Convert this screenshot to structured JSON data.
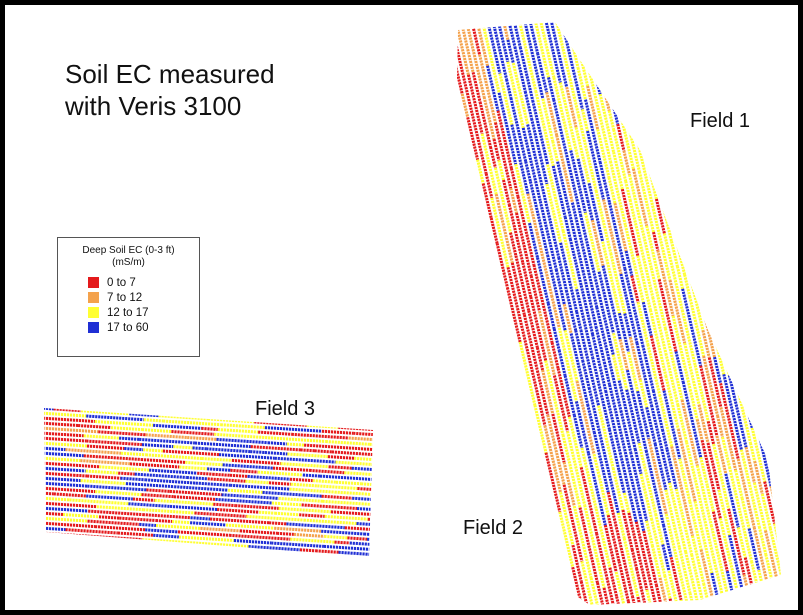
{
  "title": {
    "line1": "Soil EC measured",
    "line2": "with Veris 3100"
  },
  "legend": {
    "title_line1": "Deep Soil EC (0-3 ft)",
    "title_line2": "(mS/m)",
    "classes": [
      {
        "label": "0  to  7",
        "color": "#e41a1c"
      },
      {
        "label": "7  to  12",
        "color": "#f4a24c"
      },
      {
        "label": "12  to  17",
        "color": "#ffff33"
      },
      {
        "label": "17  to  60",
        "color": "#1f2fd4"
      }
    ]
  },
  "fields": {
    "field1": "Field 1",
    "field2": "Field 2",
    "field3": "Field 3"
  },
  "colors": {
    "frame": "#000000",
    "background": "#ffffff"
  }
}
